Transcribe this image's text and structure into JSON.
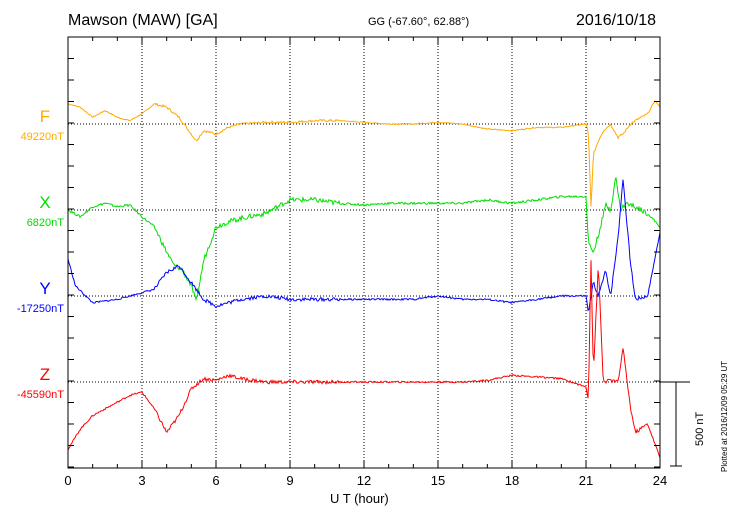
{
  "header": {
    "title": "Mawson (MAW)  [GA]",
    "coordinates": "GG (-67.60°,  62.88°)",
    "date": "2016/10/18"
  },
  "plotted_note": "Plotted at 2016/12/09 05:29 UT",
  "scale_label": "500 nT",
  "colors": {
    "F": "#ffaa00",
    "X": "#00dd00",
    "Y": "#0000ff",
    "Z": "#ff0000"
  },
  "chart_data": {
    "type": "line",
    "xlabel": "U T (hour)",
    "xlim": [
      0,
      24
    ],
    "xticks": [
      "0",
      "3",
      "6",
      "9",
      "12",
      "15",
      "18",
      "21",
      "24"
    ],
    "scale_bar_nT": 500,
    "grid": true,
    "series": [
      {
        "name": "F",
        "baseline_label": "49220nT",
        "color": "#ffaa00",
        "x": [
          0,
          0.5,
          1,
          1.5,
          2,
          2.5,
          3,
          3.5,
          4,
          4.5,
          5,
          5.2,
          5.5,
          6,
          6.5,
          7,
          8,
          9,
          10,
          11,
          12,
          13,
          14,
          15,
          16,
          17,
          18,
          19,
          20,
          21,
          21.1,
          21.2,
          21.3,
          21.5,
          21.7,
          22,
          22.3,
          22.5,
          22.8,
          23,
          23.5,
          23.8,
          24
        ],
        "y": [
          120,
          100,
          40,
          80,
          40,
          20,
          60,
          120,
          100,
          40,
          -60,
          -100,
          -40,
          -60,
          -20,
          0,
          10,
          10,
          20,
          20,
          10,
          0,
          0,
          10,
          0,
          -30,
          -40,
          -20,
          -20,
          0,
          -60,
          -500,
          -180,
          -100,
          -40,
          0,
          -80,
          -60,
          0,
          20,
          60,
          140,
          100
        ]
      },
      {
        "name": "X",
        "baseline_label": "6820nT",
        "color": "#00dd00",
        "x": [
          0,
          0.5,
          1,
          1.5,
          2,
          2.5,
          3,
          3.5,
          4,
          4.3,
          4.6,
          5,
          5.2,
          5.5,
          6,
          6.5,
          7,
          8,
          9,
          10,
          11,
          12,
          13,
          14,
          15,
          16,
          17,
          18,
          19,
          20,
          21,
          21.1,
          21.3,
          21.5,
          21.8,
          22,
          22.2,
          22.4,
          22.6,
          23,
          23.5,
          24
        ],
        "y": [
          0,
          -40,
          20,
          40,
          20,
          30,
          -40,
          -100,
          -250,
          -330,
          -350,
          -450,
          -550,
          -300,
          -100,
          -70,
          -50,
          -20,
          60,
          60,
          40,
          30,
          40,
          40,
          40,
          40,
          60,
          40,
          60,
          80,
          80,
          -200,
          -250,
          -150,
          30,
          0,
          200,
          0,
          40,
          20,
          -20,
          -100
        ]
      },
      {
        "name": "Y",
        "baseline_label": "-17250nT",
        "color": "#0000ff",
        "x": [
          0,
          0.3,
          1,
          2,
          3,
          3.5,
          4,
          4.5,
          5,
          5.5,
          6,
          6.5,
          7,
          8,
          9,
          10,
          11,
          12,
          13,
          14,
          15,
          16,
          17,
          18,
          19,
          20,
          21,
          21.1,
          21.3,
          21.5,
          21.8,
          22,
          22.3,
          22.5,
          22.8,
          23,
          23.5,
          24
        ],
        "y": [
          220,
          60,
          -40,
          -20,
          20,
          40,
          140,
          180,
          80,
          -20,
          -60,
          -40,
          -20,
          0,
          -20,
          -20,
          -20,
          -20,
          -20,
          -20,
          0,
          -20,
          -20,
          -40,
          -20,
          0,
          0,
          -100,
          80,
          0,
          150,
          0,
          350,
          700,
          200,
          -20,
          0,
          380
        ]
      },
      {
        "name": "Z",
        "baseline_label": "-45590nT",
        "color": "#ff0000",
        "x": [
          0,
          0.5,
          1,
          1.5,
          2,
          2.5,
          3,
          3.5,
          4,
          4.5,
          5,
          5.5,
          6,
          6.5,
          7,
          8,
          9,
          10,
          11,
          12,
          13,
          14,
          15,
          16,
          17,
          18,
          19,
          20,
          21,
          21.1,
          21.2,
          21.3,
          21.5,
          21.7,
          22,
          22.3,
          22.5,
          22.8,
          23,
          23.5,
          24
        ],
        "y": [
          -400,
          -280,
          -200,
          -160,
          -120,
          -80,
          -60,
          -160,
          -300,
          -200,
          -40,
          20,
          10,
          40,
          20,
          0,
          0,
          0,
          0,
          0,
          0,
          0,
          0,
          0,
          10,
          40,
          30,
          20,
          -30,
          -100,
          750,
          50,
          700,
          0,
          10,
          0,
          200,
          -150,
          -300,
          -250,
          -450
        ]
      }
    ]
  }
}
